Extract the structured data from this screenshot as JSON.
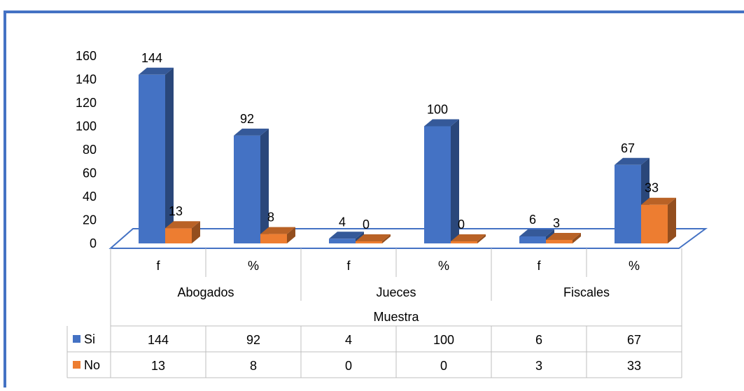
{
  "colors": {
    "border": "#4472c4",
    "si": "#4472c4",
    "no": "#ed7d31",
    "grid": "#bfbfbf",
    "floor": "#4472c4"
  },
  "chart_data": {
    "type": "bar",
    "groups": [
      "Abogados",
      "Jueces",
      "Fiscales"
    ],
    "sub_categories": [
      "f",
      "%",
      "f",
      "%",
      "f",
      "%"
    ],
    "group_axis_title": "Muestra",
    "series": [
      {
        "name": "Si",
        "values": [
          144,
          92,
          4,
          100,
          6,
          67
        ]
      },
      {
        "name": "No",
        "values": [
          13,
          8,
          0,
          0,
          3,
          33
        ]
      }
    ],
    "yticks": [
      0,
      20,
      40,
      60,
      80,
      100,
      120,
      140,
      160
    ],
    "ylim": [
      0,
      160
    ],
    "data_table": true,
    "three_d": true
  }
}
